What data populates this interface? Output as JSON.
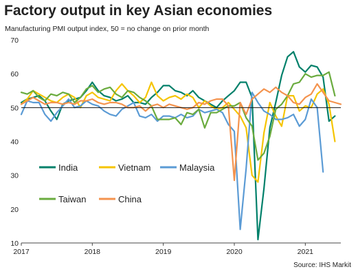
{
  "title": "Factory output in key Asian economies",
  "subtitle": "Manufacturing PMI output index, 50 = no change on prior month",
  "source": "Source: IHS Markit",
  "chart_data": {
    "type": "line",
    "ylim": [
      10,
      70
    ],
    "yticks": [
      10,
      20,
      30,
      40,
      50,
      60,
      70
    ],
    "xlim": [
      2017.0,
      2021.5
    ],
    "xticks": [
      2017,
      2018,
      2019,
      2020,
      2021
    ],
    "xtick_labels": [
      "2017",
      "2018",
      "2019",
      "2020",
      "2021"
    ],
    "reference_line": 50,
    "grid": false,
    "legend": "inside-left",
    "series": [
      {
        "name": "India",
        "color": "#00806a",
        "values": [
          51.5,
          52.5,
          53.0,
          53.5,
          52.0,
          49.0,
          46.5,
          51.0,
          52.0,
          52.5,
          53.0,
          55.0,
          57.5,
          55.0,
          53.5,
          53.0,
          52.0,
          52.5,
          53.5,
          51.5,
          51.5,
          51.0,
          53.0,
          54.5,
          56.5,
          56.5,
          55.0,
          54.5,
          53.5,
          55.0,
          53.0,
          52.0,
          51.0,
          50.0,
          52.0,
          53.5,
          55.0,
          57.5,
          57.5,
          53.0,
          11.0,
          26.0,
          44.0,
          51.5,
          59.5,
          65.0,
          66.5,
          62.0,
          60.5,
          62.5,
          62.0,
          59.0,
          46.0,
          47.5
        ]
      },
      {
        "name": "Vietnam",
        "color": "#f5c400",
        "values": [
          51.0,
          52.5,
          55.0,
          54.0,
          53.0,
          52.0,
          51.5,
          53.0,
          54.0,
          53.0,
          50.0,
          53.5,
          54.5,
          53.0,
          52.5,
          52.0,
          55.0,
          57.0,
          55.0,
          53.5,
          51.5,
          53.0,
          57.5,
          53.5,
          52.0,
          53.0,
          53.5,
          52.5,
          54.0,
          53.0,
          50.0,
          52.0,
          50.5,
          49.5,
          50.0,
          51.5,
          49.5,
          47.5,
          44.0,
          30.0,
          28.0,
          42.5,
          51.5,
          47.5,
          44.5,
          53.5,
          53.5,
          49.0,
          50.5,
          50.0,
          54.0,
          55.5,
          51.0,
          40.0
        ]
      },
      {
        "name": "Malaysia",
        "color": "#5b9bd5",
        "values": [
          48.0,
          52.0,
          51.5,
          51.5,
          48.0,
          46.0,
          48.5,
          50.5,
          52.5,
          50.0,
          50.5,
          52.0,
          51.0,
          50.5,
          49.0,
          48.0,
          47.5,
          49.5,
          50.5,
          51.5,
          47.5,
          47.0,
          48.0,
          46.0,
          47.5,
          47.5,
          47.0,
          48.0,
          47.0,
          47.5,
          49.5,
          48.5,
          49.0,
          49.5,
          48.5,
          45.0,
          43.0,
          14.0,
          32.0,
          54.5,
          51.5,
          49.0,
          48.0,
          46.5,
          46.5,
          47.0,
          48.0,
          44.5,
          46.5,
          52.5,
          50.0,
          31.0
        ]
      },
      {
        "name": "Taiwan",
        "color": "#6aab3e",
        "values": [
          54.5,
          54.0,
          55.0,
          53.0,
          52.0,
          54.0,
          53.5,
          54.5,
          54.0,
          51.5,
          53.0,
          55.5,
          56.5,
          54.5,
          55.5,
          56.0,
          54.0,
          53.0,
          55.0,
          54.5,
          53.0,
          52.0,
          50.5,
          46.5,
          46.5,
          46.5,
          47.0,
          45.0,
          48.5,
          48.0,
          49.5,
          44.0,
          48.5,
          48.5,
          49.5,
          50.5,
          50.5,
          51.5,
          47.0,
          44.5,
          34.5,
          36.5,
          41.5,
          49.5,
          51.0,
          53.5,
          57.0,
          57.5,
          60.0,
          59.0,
          59.5,
          59.5,
          60.5,
          53.5
        ]
      },
      {
        "name": "China",
        "color": "#f4934e",
        "values": [
          51.0,
          52.0,
          53.0,
          52.0,
          51.0,
          51.5,
          51.5,
          51.0,
          51.5,
          51.0,
          52.0,
          52.0,
          52.5,
          51.5,
          51.0,
          51.5,
          51.5,
          51.0,
          50.0,
          50.0,
          50.5,
          49.0,
          50.5,
          51.0,
          50.0,
          51.0,
          50.5,
          50.0,
          49.5,
          50.0,
          51.5,
          51.0,
          52.0,
          52.5,
          52.5,
          50.5,
          28.5,
          51.5,
          48.0,
          52.5,
          54.0,
          55.5,
          54.5,
          56.0,
          54.5,
          53.5,
          51.5,
          51.0,
          53.0,
          54.0,
          57.0,
          54.5,
          52.0,
          51.5,
          51.0
        ]
      }
    ]
  }
}
